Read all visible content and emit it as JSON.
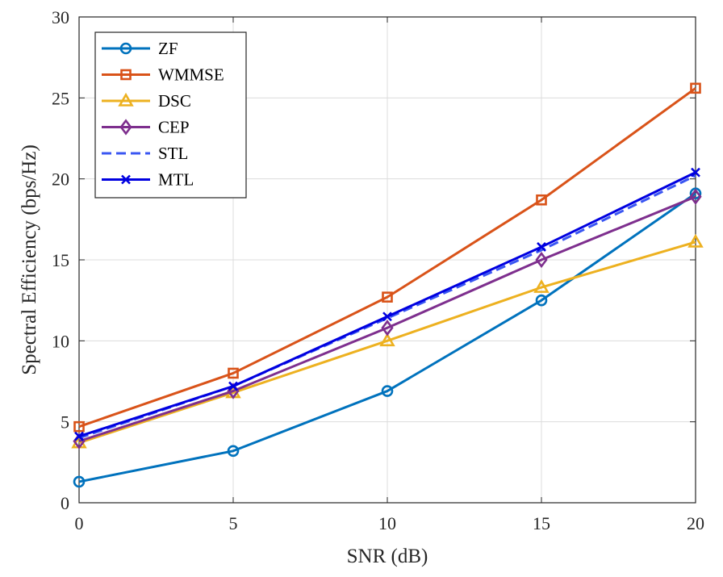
{
  "chart_data": {
    "type": "line",
    "title": "",
    "xlabel": "SNR (dB)",
    "ylabel": "Spectral Efficiency (bps/Hz)",
    "x": [
      0,
      5,
      10,
      15,
      20
    ],
    "xlim": [
      0,
      20
    ],
    "ylim": [
      0,
      30
    ],
    "xticks": [
      "0",
      "5",
      "10",
      "15",
      "20"
    ],
    "yticks": [
      "0",
      "5",
      "10",
      "15",
      "20",
      "25",
      "30"
    ],
    "grid": true,
    "legend_position": "top-left",
    "series": [
      {
        "name": "ZF",
        "values": [
          1.3,
          3.2,
          6.9,
          12.5,
          19.1
        ],
        "color": "#0072BD",
        "marker": "circle",
        "dash": "solid"
      },
      {
        "name": "WMMSE",
        "values": [
          4.7,
          8.0,
          12.7,
          18.7,
          25.6
        ],
        "color": "#D95319",
        "marker": "square",
        "dash": "solid"
      },
      {
        "name": "DSC",
        "values": [
          3.7,
          6.8,
          10.0,
          13.3,
          16.1
        ],
        "color": "#EDB120",
        "marker": "triangle",
        "dash": "solid"
      },
      {
        "name": "CEP",
        "values": [
          3.8,
          6.9,
          10.8,
          15.0,
          18.9
        ],
        "color": "#7E2F8E",
        "marker": "diamond",
        "dash": "solid"
      },
      {
        "name": "STL",
        "values": [
          4.0,
          7.2,
          11.4,
          15.6,
          20.2
        ],
        "color": "#3A56F2",
        "marker": "none",
        "dash": "dashed"
      },
      {
        "name": "MTL",
        "values": [
          4.1,
          7.2,
          11.5,
          15.8,
          20.4
        ],
        "color": "#0000E0",
        "marker": "x",
        "dash": "solid"
      }
    ]
  }
}
